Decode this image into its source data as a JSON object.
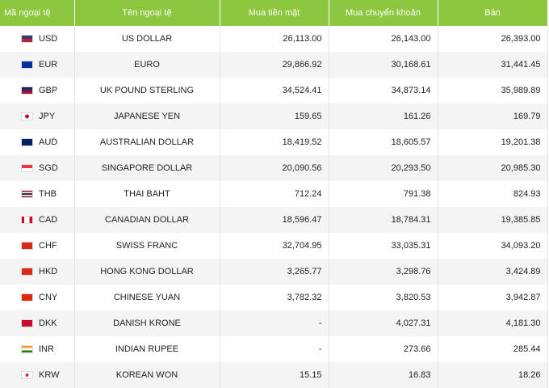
{
  "table": {
    "headers": [
      "Mã ngoại tệ",
      "Tên ngoại tệ",
      "Mua tiền mặt",
      "Mua chuyển khoản",
      "Bán"
    ],
    "rows": [
      [
        "USD",
        "US DOLLAR",
        "26,113.00",
        "26,143.00",
        "26,393.00"
      ],
      [
        "EUR",
        "EURO",
        "29,866.92",
        "30,168.61",
        "31,441.45"
      ],
      [
        "GBP",
        "UK POUND STERLING",
        "34,524.41",
        "34,873.14",
        "35,989.89"
      ],
      [
        "JPY",
        "JAPANESE YEN",
        "159.65",
        "161.26",
        "169.79"
      ],
      [
        "AUD",
        "AUSTRALIAN DOLLAR",
        "18,419.52",
        "18,605.57",
        "19,201.38"
      ],
      [
        "SGD",
        "SINGAPORE DOLLAR",
        "20,090.56",
        "20,293.50",
        "20,985.30"
      ],
      [
        "THB",
        "THAI BAHT",
        "712.24",
        "791.38",
        "824.93"
      ],
      [
        "CAD",
        "CANADIAN DOLLAR",
        "18,596.47",
        "18,784.31",
        "19,385.85"
      ],
      [
        "CHF",
        "SWISS FRANC",
        "32,704.95",
        "33,035.31",
        "34,093.20"
      ],
      [
        "HKD",
        "HONG KONG DOLLAR",
        "3,265.77",
        "3,298.76",
        "3,424.89"
      ],
      [
        "CNY",
        "CHINESE YUAN",
        "3,782.32",
        "3,820.53",
        "3,942.87"
      ],
      [
        "DKK",
        "DANISH KRONE",
        "-",
        "4,027.31",
        "4,181.30"
      ],
      [
        "INR",
        "INDIAN RUPEE",
        "-",
        "273.66",
        "285.44"
      ],
      [
        "KRW",
        "KOREAN WON",
        "15.15",
        "16.83",
        "18.26"
      ]
    ]
  }
}
